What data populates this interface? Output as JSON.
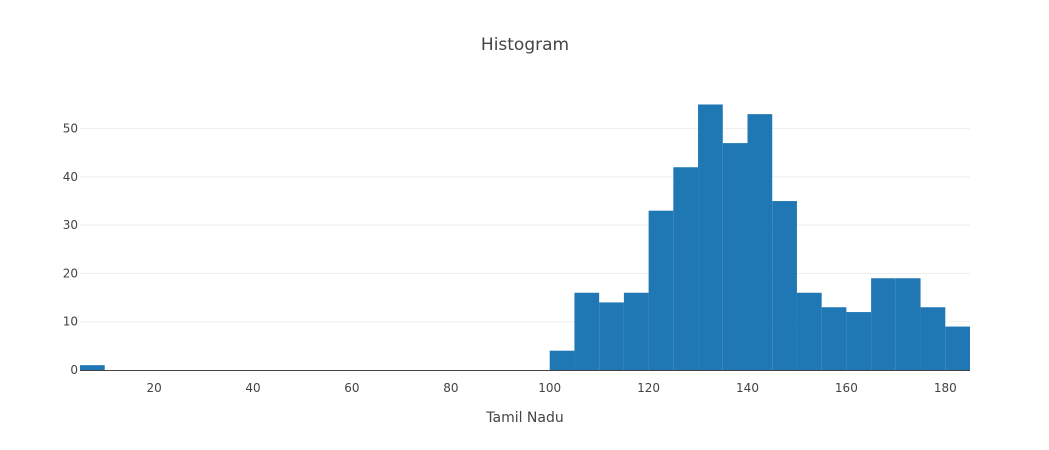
{
  "chart_data": {
    "type": "bar",
    "title": "Histogram",
    "xlabel": "Tamil Nadu",
    "ylabel": "",
    "xlim": [
      5,
      185
    ],
    "ylim": [
      0,
      58
    ],
    "x_ticks": [
      20,
      40,
      60,
      80,
      100,
      120,
      140,
      160,
      180
    ],
    "y_ticks": [
      0,
      10,
      20,
      30,
      40,
      50
    ],
    "grid": true,
    "bar_color": "#1f77b4",
    "bins": [
      {
        "x0": 5,
        "x1": 10,
        "count": 1
      },
      {
        "x0": 100,
        "x1": 105,
        "count": 4
      },
      {
        "x0": 105,
        "x1": 110,
        "count": 16
      },
      {
        "x0": 110,
        "x1": 115,
        "count": 14
      },
      {
        "x0": 115,
        "x1": 120,
        "count": 16
      },
      {
        "x0": 120,
        "x1": 125,
        "count": 33
      },
      {
        "x0": 125,
        "x1": 130,
        "count": 42
      },
      {
        "x0": 130,
        "x1": 135,
        "count": 55
      },
      {
        "x0": 135,
        "x1": 140,
        "count": 47
      },
      {
        "x0": 140,
        "x1": 145,
        "count": 53
      },
      {
        "x0": 145,
        "x1": 150,
        "count": 35
      },
      {
        "x0": 150,
        "x1": 155,
        "count": 16
      },
      {
        "x0": 155,
        "x1": 160,
        "count": 13
      },
      {
        "x0": 160,
        "x1": 165,
        "count": 12
      },
      {
        "x0": 165,
        "x1": 170,
        "count": 19
      },
      {
        "x0": 170,
        "x1": 175,
        "count": 19
      },
      {
        "x0": 175,
        "x1": 180,
        "count": 13
      },
      {
        "x0": 180,
        "x1": 185,
        "count": 9
      }
    ]
  }
}
